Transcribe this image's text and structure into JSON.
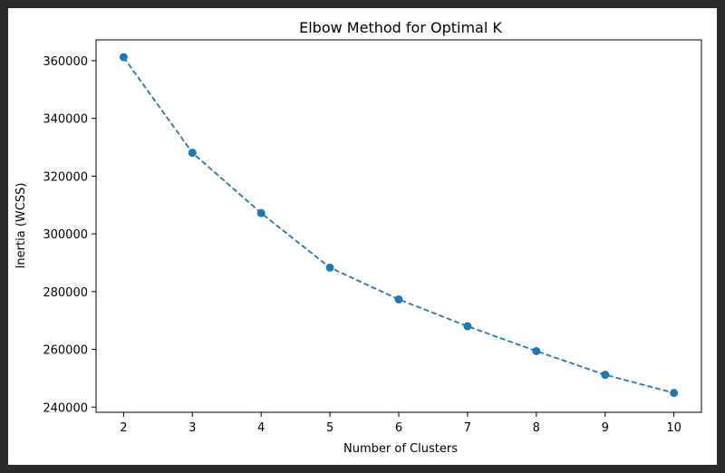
{
  "chart_data": {
    "type": "line",
    "title": "Elbow Method for Optimal K",
    "xlabel": "Number of Clusters",
    "ylabel": "Inertia (WCSS)",
    "x": [
      2,
      3,
      4,
      5,
      6,
      7,
      8,
      9,
      10
    ],
    "series": [
      {
        "values": [
          361200,
          328100,
          307200,
          288300,
          277300,
          268000,
          259400,
          251200,
          244900
        ],
        "color": "#1f77b4",
        "linestyle": "dashed",
        "marker": "circle"
      }
    ],
    "xticks": [
      2,
      3,
      4,
      5,
      6,
      7,
      8,
      9,
      10
    ],
    "yticks": [
      240000,
      260000,
      280000,
      300000,
      320000,
      340000,
      360000
    ],
    "xlim": [
      1.6,
      10.4
    ],
    "ylim": [
      238200,
      367200
    ],
    "grid": false
  }
}
